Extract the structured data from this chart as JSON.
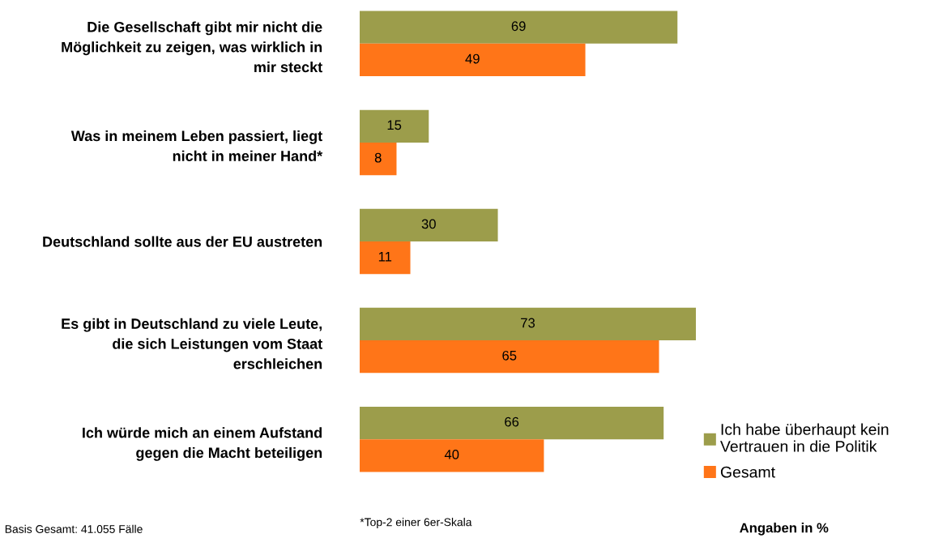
{
  "chart_data": {
    "type": "bar",
    "orientation": "horizontal",
    "categories": [
      "Die Gesellschaft gibt mir nicht die\nMöglichkeit zu zeigen, was wirklich in\nmir steckt",
      "Was in meinem Leben passiert, liegt\nnicht in meiner Hand*",
      "Deutschland sollte aus der EU austreten",
      "Es gibt in Deutschland zu viele Leute,\ndie sich Leistungen vom Staat\nerschleichen",
      "Ich würde mich an einem Aufstand\ngegen die Macht beteiligen"
    ],
    "series": [
      {
        "name": "Ich habe überhaupt kein\nVertrauen in die Politik",
        "color": "#9c9d4b",
        "values": [
          69,
          15,
          30,
          73,
          66
        ]
      },
      {
        "name": "Gesamt",
        "color": "#ff7518",
        "values": [
          49,
          8,
          11,
          65,
          40
        ]
      }
    ],
    "tick_labels": "y",
    "data_labels": true,
    "legend": "bottom right",
    "grid": false,
    "annotations": [
      "Basis Gesamt: 41.055 Fälle",
      "*Top-2 einer 6er-Skala",
      "Angaben in %"
    ]
  }
}
